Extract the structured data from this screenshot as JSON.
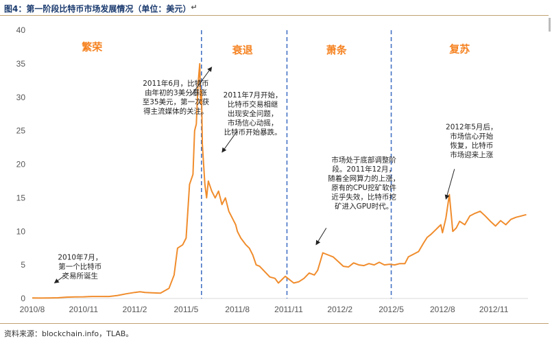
{
  "title": "图4：第一阶段比特币市场发展情况（单位：美元）",
  "para_mark": "↵",
  "source": "资料来源：blockchain.info，TLAB。",
  "colors": {
    "line": "#f08c2c",
    "divider": "#4472c4",
    "phase": "#f58220",
    "axis": "#d9d9d9"
  },
  "chart_data": {
    "type": "line",
    "title": "",
    "xlabel": "",
    "ylabel": "",
    "ylim": [
      0,
      40
    ],
    "yticks": [
      0,
      5,
      10,
      15,
      20,
      25,
      30,
      35,
      40
    ],
    "xlim": [
      0,
      29
    ],
    "xticks": [
      {
        "x": 0,
        "label": "2010/8"
      },
      {
        "x": 3,
        "label": "2010/11"
      },
      {
        "x": 6,
        "label": "2011/2"
      },
      {
        "x": 9,
        "label": "2011/5"
      },
      {
        "x": 12,
        "label": "2011/8"
      },
      {
        "x": 15,
        "label": "2011/11"
      },
      {
        "x": 18,
        "label": "2012/2"
      },
      {
        "x": 21,
        "label": "2012/5"
      },
      {
        "x": 24,
        "label": "2012/8"
      },
      {
        "x": 27,
        "label": "2012/11"
      }
    ],
    "dividers": [
      9.9,
      14.9,
      21.0
    ],
    "phases": [
      {
        "label": "繁荣",
        "x": 3.5,
        "y": 37
      },
      {
        "label": "衰退",
        "x": 12.3,
        "y": 36.5
      },
      {
        "label": "萧条",
        "x": 17.8,
        "y": 36.5
      },
      {
        "label": "复苏",
        "x": 25.0,
        "y": 36.7
      }
    ],
    "series": [
      {
        "x": [
          0,
          0.5,
          1,
          1.5,
          2,
          2.5,
          3,
          3.5,
          4,
          4.5,
          5,
          5.5,
          6,
          6.3,
          6.6,
          7,
          7.5,
          8,
          8.3,
          8.5,
          8.8,
          9,
          9.2,
          9.4,
          9.5,
          9.6,
          9.7,
          9.8,
          9.85,
          9.9,
          9.95,
          10.0,
          10.1,
          10.2,
          10.3,
          10.5,
          10.7,
          10.9,
          11.1,
          11.3,
          11.5,
          11.7,
          11.9,
          12.0,
          12.2,
          12.5,
          12.7,
          12.9,
          13.1,
          13.3,
          13.6,
          13.9,
          14.2,
          14.4,
          14.6,
          14.8,
          15.0,
          15.3,
          15.6,
          15.9,
          16.2,
          16.5,
          16.7,
          17.0,
          17.3,
          17.6,
          17.9,
          18.2,
          18.5,
          18.8,
          19.1,
          19.4,
          19.7,
          20.0,
          20.3,
          20.6,
          20.9,
          21.2,
          21.5,
          21.8,
          22.0,
          22.3,
          22.6,
          22.9,
          23.1,
          23.3,
          23.5,
          23.7,
          23.9,
          24.0,
          24.2,
          24.4,
          24.6,
          24.8,
          25.0,
          25.3,
          25.6,
          25.9,
          26.2,
          26.5,
          26.8,
          27.1,
          27.4,
          27.7,
          28.0,
          28.3,
          28.6,
          28.9
        ],
        "y": [
          0.07,
          0.06,
          0.07,
          0.1,
          0.19,
          0.23,
          0.25,
          0.3,
          0.3,
          0.3,
          0.45,
          0.7,
          0.9,
          1.0,
          0.9,
          0.85,
          0.8,
          1.5,
          3.5,
          7.5,
          8.0,
          9.0,
          17.0,
          18.5,
          25.0,
          26.0,
          32.0,
          35.0,
          29.0,
          31.0,
          23.0,
          21.0,
          17.0,
          15.0,
          17.5,
          16.0,
          15.0,
          16.0,
          14.0,
          15.0,
          13.0,
          12.0,
          11.0,
          10.0,
          9.0,
          8.0,
          7.5,
          6.5,
          5.0,
          4.8,
          4.0,
          3.2,
          3.0,
          2.3,
          2.8,
          3.3,
          2.9,
          2.3,
          2.5,
          3.0,
          3.8,
          3.5,
          4.2,
          6.8,
          6.5,
          6.2,
          5.5,
          4.8,
          4.7,
          5.3,
          5.0,
          4.9,
          5.2,
          5.0,
          5.4,
          5.0,
          5.1,
          5.0,
          5.2,
          5.2,
          6.2,
          6.6,
          7.0,
          8.3,
          9.1,
          9.5,
          10.0,
          10.5,
          11.0,
          9.8,
          12.0,
          15.5,
          10.0,
          10.5,
          11.5,
          11.0,
          12.3,
          12.7,
          13.0,
          12.3,
          11.5,
          10.8,
          11.6,
          11.0,
          11.8,
          12.1,
          12.3,
          12.5
        ]
      }
    ],
    "annotations": [
      {
        "lines": [
          "2010年7月，",
          "第一个比特币",
          "交易所诞生"
        ],
        "tx": 2.8,
        "ty": 5.8,
        "ax1": 2.1,
        "ay1": 3.8,
        "ax2": 1.3,
        "ay2": 2.3
      },
      {
        "lines": [
          "2011年6月，比特币",
          "由年初的3美分暴涨",
          "至35美元，第一次获",
          "得主流媒体的关注。"
        ],
        "tx": 8.4,
        "ty": 31.7,
        "ax1": 9.3,
        "ay1": 30.3,
        "ax2": 10.5,
        "ay2": 34.5
      },
      {
        "lines": [
          "2011年7月开始，",
          "比特币交易相继",
          "出现安全问题，",
          "市场信心动摇，",
          "比特币开始暴跌。"
        ],
        "tx": 12.9,
        "ty": 30.0,
        "ax1": 12.0,
        "ay1": 25.0,
        "ax2": 11.1,
        "ay2": 21.8
      },
      {
        "lines": [
          "市场处于底部调整阶",
          "段。2011年12月，",
          "随着全网算力的上涨，",
          "原有的CPU挖矿软件",
          "近乎失效，比特币挖",
          "矿进入GPU时代。"
        ],
        "tx": 19.4,
        "ty": 20.3,
        "ax1": 17.2,
        "ay1": 10.5,
        "ax2": 16.6,
        "ay2": 8.0
      },
      {
        "lines": [
          "2012年5月后，",
          "市场信心开始",
          "恢复，比特币",
          "市场迎来上涨"
        ],
        "tx": 25.7,
        "ty": 25.2,
        "ax1": 24.7,
        "ay1": 19.3,
        "ax2": 24.2,
        "ay2": 14.8
      }
    ]
  }
}
